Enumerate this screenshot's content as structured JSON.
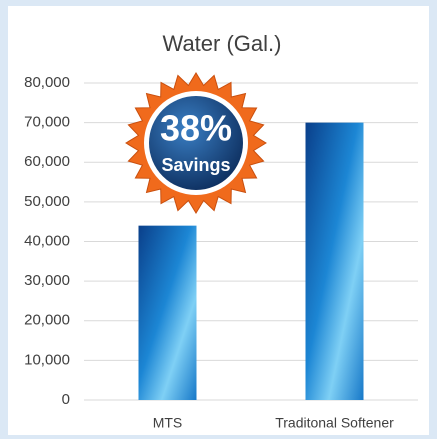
{
  "chart_data": {
    "type": "bar",
    "title": "Water (Gal.)",
    "categories": [
      "MTS",
      "Traditonal Softener"
    ],
    "values": [
      44000,
      70000
    ],
    "color": "#1a7fd0",
    "ylim": [
      0,
      80000
    ],
    "yticks": [
      0,
      {
        "value": 10000,
        "label": "10,000"
      },
      {
        "value": 20000,
        "label": "20,000"
      },
      {
        "value": 30000,
        "label": "30,000"
      },
      {
        "value": 40000,
        "label": "40,000"
      },
      {
        "value": 50000,
        "label": "50,000"
      },
      {
        "value": 60000,
        "label": "60,000"
      },
      {
        "value": 70000,
        "label": "70,000"
      },
      {
        "value": 80000,
        "label": "80,000"
      }
    ],
    "grid": true,
    "annotations": [
      "38%",
      "Savings"
    ]
  }
}
